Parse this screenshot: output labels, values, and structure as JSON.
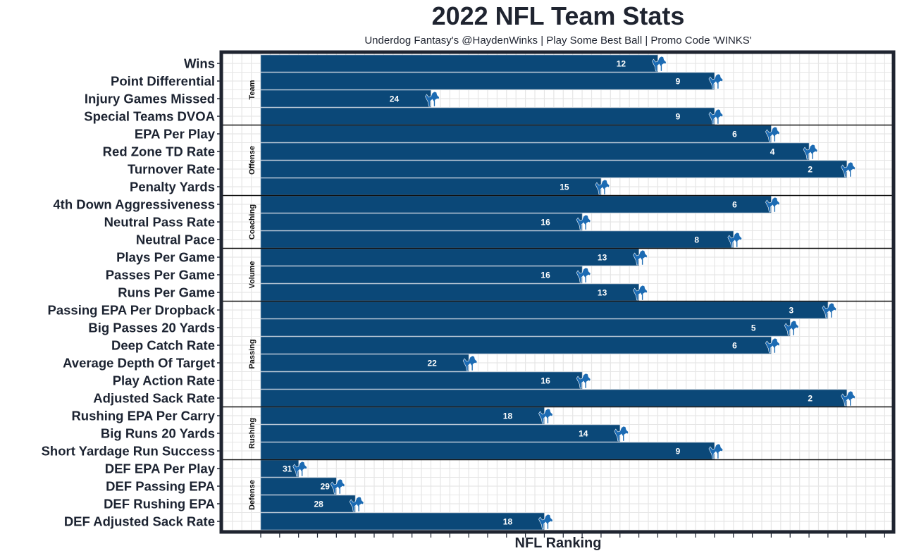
{
  "chart_data": {
    "type": "bar",
    "orientation": "horizontal",
    "title": "2022 NFL Team Stats",
    "subtitle": "Underdog Fantasy's @HaydenWinks | Play Some Best Ball | Promo Code 'WINKS'",
    "xlabel": "NFL Ranking",
    "ylabel": "",
    "value_encoding": "bar length = 33 - rank (rank 1 longest)",
    "x_range": [
      0,
      33
    ],
    "grid": true,
    "team_marker_icon": "detroit-lions-logo",
    "colors": {
      "bar": "#0b4878",
      "marker": "#1c6bb3",
      "panel_border": "#1f2430",
      "grid": "#e6e6e6",
      "label": "#ffffff"
    },
    "groups": [
      {
        "name": "Team",
        "stats": [
          {
            "label": "Wins",
            "rank": 12
          },
          {
            "label": "Point Differential",
            "rank": 9
          },
          {
            "label": "Injury Games Missed",
            "rank": 24
          },
          {
            "label": "Special Teams DVOA",
            "rank": 9
          }
        ]
      },
      {
        "name": "Offense",
        "stats": [
          {
            "label": "EPA Per Play",
            "rank": 6
          },
          {
            "label": "Red Zone TD Rate",
            "rank": 4
          },
          {
            "label": "Turnover Rate",
            "rank": 2
          },
          {
            "label": "Penalty Yards",
            "rank": 15
          }
        ]
      },
      {
        "name": "Coaching",
        "stats": [
          {
            "label": "4th Down Aggressiveness",
            "rank": 6
          },
          {
            "label": "Neutral Pass Rate",
            "rank": 16
          },
          {
            "label": "Neutral Pace",
            "rank": 8
          }
        ]
      },
      {
        "name": "Volume",
        "stats": [
          {
            "label": "Plays Per Game",
            "rank": 13
          },
          {
            "label": "Passes Per Game",
            "rank": 16
          },
          {
            "label": "Runs Per Game",
            "rank": 13
          }
        ]
      },
      {
        "name": "Passing",
        "stats": [
          {
            "label": "Passing EPA Per Dropback",
            "rank": 3
          },
          {
            "label": "Big Passes 20 Yards",
            "rank": 5
          },
          {
            "label": "Deep Catch Rate",
            "rank": 6
          },
          {
            "label": "Average Depth Of Target",
            "rank": 22
          },
          {
            "label": "Play Action Rate",
            "rank": 16
          },
          {
            "label": "Adjusted Sack Rate",
            "rank": 2
          }
        ]
      },
      {
        "name": "Rushing",
        "stats": [
          {
            "label": "Rushing EPA Per Carry",
            "rank": 18
          },
          {
            "label": "Big Runs 20 Yards",
            "rank": 14
          },
          {
            "label": "Short Yardage Run Success",
            "rank": 9
          }
        ]
      },
      {
        "name": "Defense",
        "stats": [
          {
            "label": "DEF EPA Per Play",
            "rank": 31
          },
          {
            "label": "DEF Passing EPA",
            "rank": 29
          },
          {
            "label": "DEF Rushing EPA",
            "rank": 28
          },
          {
            "label": "DEF Adjusted Sack Rate",
            "rank": 18
          }
        ]
      }
    ]
  }
}
